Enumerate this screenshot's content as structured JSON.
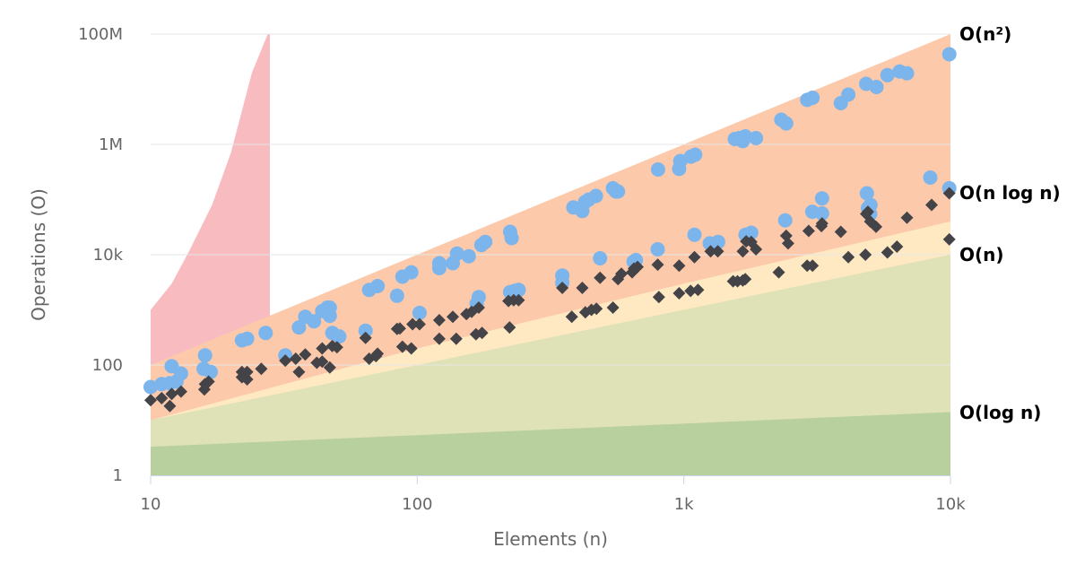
{
  "chart_data": {
    "type": "area",
    "x_scale": "log",
    "y_scale": "log",
    "xlim": [
      10,
      10000
    ],
    "ylim": [
      1,
      100000000
    ],
    "xlabel": "Elements (n)",
    "ylabel": "Operations (O)",
    "x_ticks": [
      {
        "value": 10,
        "label": "10"
      },
      {
        "value": 100,
        "label": "100"
      },
      {
        "value": 1000,
        "label": "1k"
      },
      {
        "value": 10000,
        "label": "10k"
      }
    ],
    "y_ticks": [
      {
        "value": 1,
        "label": "1"
      },
      {
        "value": 100,
        "label": "100"
      },
      {
        "value": 10000,
        "label": "10k"
      },
      {
        "value": 1000000,
        "label": "1M"
      },
      {
        "value": 100000000,
        "label": "100M"
      }
    ],
    "grid": "horizontal",
    "colors": {
      "factorial": "#f8bbbf",
      "quadratic": "#fcc9ab",
      "nlogn": "#fee9c3",
      "linear": "#dfe1b6",
      "logn": "#b7d09d",
      "circles": "#7cb5ec",
      "diamonds": "#434348",
      "grid": "#e6e6e6",
      "axis": "#ccd6eb"
    },
    "bands": [
      {
        "id": "factorial",
        "label": "",
        "x": [
          10,
          12,
          14,
          17,
          20,
          24,
          27.5,
          28
        ],
        "y": [
          1000,
          3000,
          12000,
          80000,
          700000,
          20000000,
          100000000,
          100000000
        ]
      },
      {
        "id": "quadratic",
        "label": "O(n²)",
        "x": [
          10,
          10000
        ],
        "y": [
          100,
          100000000
        ]
      },
      {
        "id": "nlogn",
        "label": "O(n log n)",
        "x": [
          10,
          100,
          1000,
          10000
        ],
        "y": [
          10,
          200,
          3000,
          40000
        ]
      },
      {
        "id": "linear",
        "label": "O(n)",
        "x": [
          10,
          10000
        ],
        "y": [
          10,
          10000
        ]
      },
      {
        "id": "logn",
        "label": "O(log n)",
        "x": [
          10,
          10000
        ],
        "y": [
          3.3,
          14
        ]
      }
    ],
    "series": [
      {
        "marker": "circle",
        "points": [
          [
            10,
            40
          ],
          [
            11,
            45
          ],
          [
            11.8,
            47
          ],
          [
            12.5,
            50
          ],
          [
            12,
            95
          ],
          [
            13,
            70
          ],
          [
            15.8,
            85
          ],
          [
            16,
            150
          ],
          [
            16.8,
            75
          ],
          [
            22,
            280
          ],
          [
            23,
            300
          ],
          [
            27,
            380
          ],
          [
            32,
            150
          ],
          [
            36,
            480
          ],
          [
            38,
            750
          ],
          [
            41,
            620
          ],
          [
            44,
            950
          ],
          [
            46,
            1100
          ],
          [
            47,
            1100
          ],
          [
            47,
            780
          ],
          [
            48,
            380
          ],
          [
            51,
            330
          ],
          [
            64,
            420
          ],
          [
            66,
            2300
          ],
          [
            71,
            2700
          ],
          [
            84,
            1800
          ],
          [
            88,
            4000
          ],
          [
            95,
            4800
          ],
          [
            102,
            880
          ],
          [
            121,
            7000
          ],
          [
            121,
            5700
          ],
          [
            136,
            7000
          ],
          [
            141,
            10500
          ],
          [
            156,
            9400
          ],
          [
            167,
            1300
          ],
          [
            170,
            1700
          ],
          [
            174,
            15000
          ],
          [
            180,
            17000
          ],
          [
            223,
            2100
          ],
          [
            223,
            26000
          ],
          [
            226,
            20000
          ],
          [
            232,
            2200
          ],
          [
            240,
            2300
          ],
          [
            350,
            4200
          ],
          [
            350,
            3100
          ],
          [
            385,
            72000
          ],
          [
            416,
            62000
          ],
          [
            426,
            90000
          ],
          [
            440,
            100000
          ],
          [
            468,
            116000
          ],
          [
            485,
            8600
          ],
          [
            542,
            160000
          ],
          [
            556,
            140000
          ],
          [
            566,
            140000
          ],
          [
            648,
            7500
          ],
          [
            661,
            8000
          ],
          [
            798,
            12500
          ],
          [
            800,
            350000
          ],
          [
            960,
            360000
          ],
          [
            970,
            500000
          ],
          [
            1063,
            600000
          ],
          [
            1103,
            650000
          ],
          [
            1096,
            23000
          ],
          [
            1250,
            16000
          ],
          [
            1345,
            17000
          ],
          [
            1553,
            1250000
          ],
          [
            1613,
            1300000
          ],
          [
            1664,
            1150000
          ],
          [
            1700,
            1400000
          ],
          [
            1703,
            23000
          ],
          [
            1790,
            25000
          ],
          [
            1864,
            1300000
          ],
          [
            2320,
            2800000
          ],
          [
            2420,
            2400000
          ],
          [
            2400,
            42000
          ],
          [
            2900,
            6400000
          ],
          [
            3040,
            7000000
          ],
          [
            3032,
            60000
          ],
          [
            3300,
            105000
          ],
          [
            3300,
            56000
          ],
          [
            3880,
            5600000
          ],
          [
            4140,
            8000000
          ],
          [
            4830,
            12500000
          ],
          [
            4860,
            130000
          ],
          [
            4900,
            70000
          ],
          [
            5010,
            80000
          ],
          [
            5000,
            55000
          ],
          [
            5280,
            11000000
          ],
          [
            5800,
            18000000
          ],
          [
            6450,
            21000000
          ],
          [
            6870,
            19500000
          ],
          [
            8400,
            250000
          ],
          [
            9900,
            160000
          ],
          [
            9900,
            43000000
          ]
        ]
      },
      {
        "marker": "diamond",
        "points": [
          [
            10,
            23
          ],
          [
            11,
            25
          ],
          [
            11.8,
            18
          ],
          [
            12,
            30
          ],
          [
            13,
            33
          ],
          [
            15.9,
            36
          ],
          [
            16,
            45
          ],
          [
            16.5,
            50
          ],
          [
            22,
            75
          ],
          [
            22,
            60
          ],
          [
            23,
            55
          ],
          [
            23,
            75
          ],
          [
            26,
            85
          ],
          [
            32,
            120
          ],
          [
            35,
            130
          ],
          [
            36,
            75
          ],
          [
            38,
            155
          ],
          [
            42,
            110
          ],
          [
            44,
            200
          ],
          [
            44,
            115
          ],
          [
            47,
            90
          ],
          [
            48,
            220
          ],
          [
            50,
            210
          ],
          [
            64,
            310
          ],
          [
            66,
            130
          ],
          [
            71,
            160
          ],
          [
            70,
            145
          ],
          [
            84,
            450
          ],
          [
            86,
            460
          ],
          [
            88,
            215
          ],
          [
            95,
            200
          ],
          [
            96,
            550
          ],
          [
            102,
            550
          ],
          [
            121,
            650
          ],
          [
            121,
            300
          ],
          [
            136,
            750
          ],
          [
            140,
            300
          ],
          [
            153,
            840
          ],
          [
            160,
            920
          ],
          [
            166,
            360
          ],
          [
            170,
            1100
          ],
          [
            175,
            380
          ],
          [
            220,
            1450
          ],
          [
            222,
            480
          ],
          [
            230,
            1500
          ],
          [
            240,
            1500
          ],
          [
            350,
            2500
          ],
          [
            380,
            750
          ],
          [
            416,
            2500
          ],
          [
            427,
            900
          ],
          [
            450,
            1000
          ],
          [
            470,
            1050
          ],
          [
            485,
            3800
          ],
          [
            542,
            1100
          ],
          [
            566,
            3600
          ],
          [
            583,
            4500
          ],
          [
            640,
            4800
          ],
          [
            650,
            5600
          ],
          [
            670,
            6000
          ],
          [
            798,
            6600
          ],
          [
            806,
            1700
          ],
          [
            960,
            6300
          ],
          [
            960,
            2000
          ],
          [
            1060,
            2200
          ],
          [
            1096,
            9000
          ],
          [
            1130,
            2300
          ],
          [
            1260,
            11500
          ],
          [
            1340,
            11500
          ],
          [
            1530,
            3300
          ],
          [
            1590,
            3300
          ],
          [
            1664,
            11500
          ],
          [
            1664,
            3400
          ],
          [
            1700,
            3600
          ],
          [
            1713,
            17500
          ],
          [
            1790,
            17000
          ],
          [
            1864,
            12500
          ],
          [
            2270,
            4800
          ],
          [
            2420,
            22000
          ],
          [
            2460,
            16000
          ],
          [
            2900,
            6300
          ],
          [
            2940,
            27000
          ],
          [
            3040,
            6300
          ],
          [
            3280,
            33000
          ],
          [
            3300,
            37000
          ],
          [
            3880,
            26000
          ],
          [
            4140,
            9000
          ],
          [
            4800,
            10000
          ],
          [
            4830,
            55000
          ],
          [
            4900,
            60000
          ],
          [
            5000,
            40000
          ],
          [
            5260,
            32000
          ],
          [
            5800,
            11000
          ],
          [
            6300,
            14000
          ],
          [
            6870,
            47000
          ],
          [
            8500,
            80000
          ],
          [
            9900,
            19000
          ],
          [
            9900,
            130000
          ]
        ]
      }
    ]
  }
}
